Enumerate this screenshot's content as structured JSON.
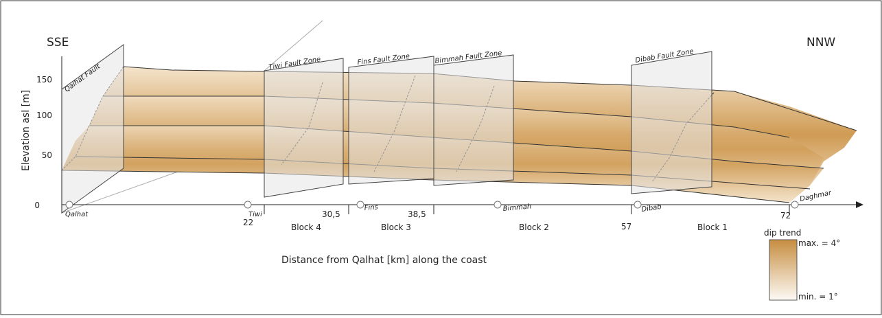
{
  "orientation": {
    "left": "SSE",
    "right": "NNW"
  },
  "y_axis": {
    "label": "Elevation asl [m]",
    "ticks": [
      "150",
      "100",
      "50",
      "0"
    ]
  },
  "x_axis": {
    "label": "Distance from Qalhat [km] along the coast",
    "ticks": [
      "22",
      "30,5",
      "38,5",
      "57",
      "72"
    ]
  },
  "faults": [
    "Qalhat Fault",
    "Tiwi Fault Zone",
    "Fins Fault Zone",
    "Bimmah Fault Zone",
    "Dibab Fault Zone"
  ],
  "places": [
    "Qalhat",
    "Tiwi",
    "Fins",
    "Bimmah",
    "Dibab",
    "Daghmar"
  ],
  "blocks": [
    "Block 4",
    "Block 3",
    "Block 2",
    "Block 1"
  ],
  "legend": {
    "title": "dip trend",
    "max": "max. = 4°",
    "min": "min. = 1°"
  }
}
